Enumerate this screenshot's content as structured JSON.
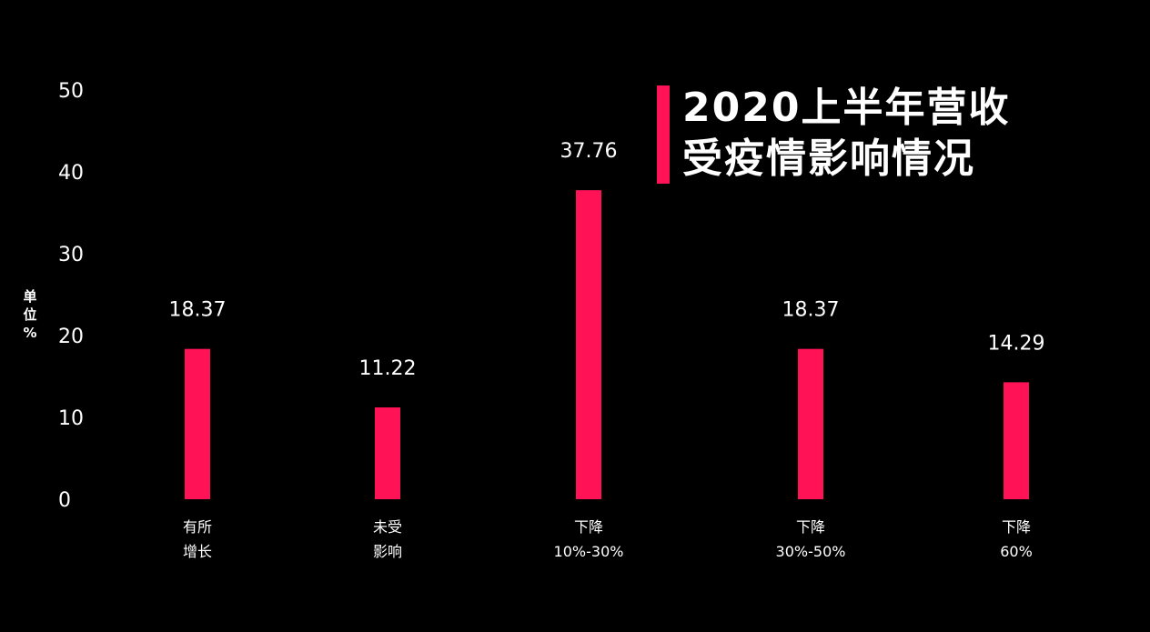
{
  "title": {
    "line1": "2020上半年营收",
    "line2": "受疫情影响情况"
  },
  "unit_label": [
    "单",
    "位",
    "%"
  ],
  "colors": {
    "background": "#000000",
    "bar": "#ff1256",
    "text": "#ffffff"
  },
  "chart_data": {
    "type": "bar",
    "title": "2020上半年营收受疫情影响情况",
    "ylabel": "单位%",
    "xlabel": "",
    "ylim": [
      0,
      50
    ],
    "yticks": [
      0,
      10,
      20,
      30,
      40,
      50
    ],
    "grid": false,
    "categories": [
      [
        "有所",
        "增长"
      ],
      [
        "未受",
        "影响"
      ],
      [
        "下降",
        "10%-30%"
      ],
      [
        "下降",
        "30%-50%"
      ],
      [
        "下降",
        "60%"
      ]
    ],
    "values": [
      18.37,
      11.22,
      37.76,
      18.37,
      14.29
    ],
    "value_labels": [
      "18.37",
      "11.22",
      "37.76",
      "18.37",
      "14.29"
    ]
  }
}
